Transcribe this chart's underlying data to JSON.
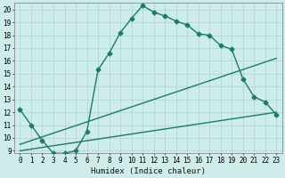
{
  "xlabel": "Humidex (Indice chaleur)",
  "xlim": [
    -0.5,
    23.5
  ],
  "ylim": [
    8.8,
    20.5
  ],
  "yticks": [
    9,
    10,
    11,
    12,
    13,
    14,
    15,
    16,
    17,
    18,
    19,
    20
  ],
  "xticks": [
    0,
    1,
    2,
    3,
    4,
    5,
    6,
    7,
    8,
    9,
    10,
    11,
    12,
    13,
    14,
    15,
    16,
    17,
    18,
    19,
    20,
    21,
    22,
    23
  ],
  "background_color": "#cdecea",
  "grid_color": "#b0d8d5",
  "line_color": "#1a7a6e",
  "line_width": 1.0,
  "marker": "D",
  "marker_size": 2.5,
  "curve1_x": [
    0,
    1,
    2,
    3,
    4,
    5,
    6,
    7,
    8,
    9,
    10,
    11,
    12,
    13,
    14,
    15,
    16,
    17,
    18,
    19,
    20,
    21,
    22,
    23
  ],
  "curve1_y": [
    12.2,
    11.0,
    9.8,
    8.8,
    8.8,
    9.0,
    10.5,
    15.3,
    16.6,
    18.2,
    19.3,
    20.3,
    19.8,
    19.5,
    19.1,
    18.8,
    18.1,
    18.0,
    17.2,
    16.9,
    14.6,
    13.2,
    12.8,
    11.8
  ],
  "line2_x": [
    0,
    23
  ],
  "line2_y": [
    9.5,
    16.2
  ],
  "line3_x": [
    0,
    23
  ],
  "line3_y": [
    9.0,
    12.0
  ],
  "font_size_axis": 6.5,
  "font_size_tick": 5.5
}
